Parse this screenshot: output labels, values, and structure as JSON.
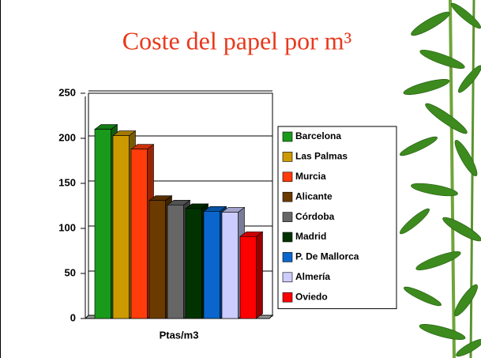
{
  "chart_data": {
    "type": "bar",
    "title": "Coste del papel por m³",
    "categories": [
      "Ptas/m3"
    ],
    "series": [
      {
        "name": "Barcelona",
        "color": "#1a9a1a",
        "values": [
          210
        ]
      },
      {
        "name": "Las Palmas",
        "color": "#cc9900",
        "values": [
          203
        ]
      },
      {
        "name": "Murcia",
        "color": "#ff3c0a",
        "values": [
          188
        ]
      },
      {
        "name": "Alicante",
        "color": "#6b3a00",
        "values": [
          131
        ]
      },
      {
        "name": "Córdoba",
        "color": "#666666",
        "values": [
          126
        ]
      },
      {
        "name": "Madrid",
        "color": "#003300",
        "values": [
          122
        ]
      },
      {
        "name": "P. De Mallorca",
        "color": "#0a66cc",
        "values": [
          119
        ]
      },
      {
        "name": "Almería",
        "color": "#ccccff",
        "values": [
          118
        ]
      },
      {
        "name": "Oviedo",
        "color": "#ff0000",
        "values": [
          91
        ]
      }
    ],
    "ylim": [
      0,
      250
    ],
    "yticks": [
      0,
      50,
      100,
      150,
      200,
      250
    ],
    "grid": true,
    "legend": "right"
  }
}
